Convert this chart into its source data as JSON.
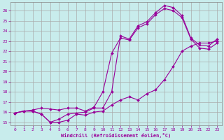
{
  "xlabel": "Windchill (Refroidissement éolien,°C)",
  "bg_color": "#c8ecec",
  "grid_color": "#aaaaaa",
  "line_color": "#990099",
  "xlim": [
    -0.5,
    23.5
  ],
  "ylim": [
    14.7,
    26.8
  ],
  "yticks": [
    15,
    16,
    17,
    18,
    19,
    20,
    21,
    22,
    23,
    24,
    25,
    26
  ],
  "xticks": [
    0,
    1,
    2,
    3,
    4,
    5,
    6,
    7,
    8,
    9,
    10,
    11,
    12,
    13,
    14,
    15,
    16,
    17,
    18,
    19,
    20,
    21,
    22,
    23
  ],
  "line1_x": [
    0,
    1,
    2,
    3,
    4,
    5,
    6,
    7,
    8,
    9,
    10,
    11,
    12,
    13,
    14,
    15,
    16,
    17,
    18,
    19,
    20,
    21,
    22,
    23
  ],
  "line1_y": [
    15.9,
    16.1,
    16.1,
    15.8,
    15.0,
    15.0,
    15.2,
    15.8,
    15.7,
    16.0,
    16.1,
    16.7,
    17.2,
    17.5,
    17.2,
    17.8,
    18.2,
    19.2,
    20.5,
    22.0,
    22.5,
    22.8,
    22.8,
    23.0
  ],
  "line2_x": [
    0,
    1,
    2,
    3,
    4,
    5,
    6,
    7,
    8,
    9,
    10,
    11,
    12,
    13,
    14,
    15,
    16,
    17,
    18,
    19,
    20,
    21,
    22,
    23
  ],
  "line2_y": [
    15.9,
    16.1,
    16.2,
    16.4,
    16.3,
    16.2,
    16.4,
    16.4,
    16.1,
    16.5,
    18.0,
    21.8,
    23.3,
    23.1,
    24.3,
    24.7,
    25.6,
    26.2,
    26.0,
    25.3,
    23.2,
    22.3,
    22.2,
    22.8
  ],
  "line3_x": [
    0,
    1,
    2,
    3,
    4,
    5,
    6,
    7,
    8,
    9,
    10,
    11,
    12,
    13,
    14,
    15,
    16,
    17,
    18,
    19,
    20,
    21,
    22,
    23
  ],
  "line3_y": [
    15.9,
    16.1,
    16.1,
    15.8,
    15.0,
    15.3,
    15.8,
    15.9,
    16.0,
    16.4,
    16.4,
    18.0,
    23.5,
    23.2,
    24.5,
    24.9,
    25.8,
    26.5,
    26.3,
    25.5,
    23.3,
    22.6,
    22.5,
    23.2
  ]
}
